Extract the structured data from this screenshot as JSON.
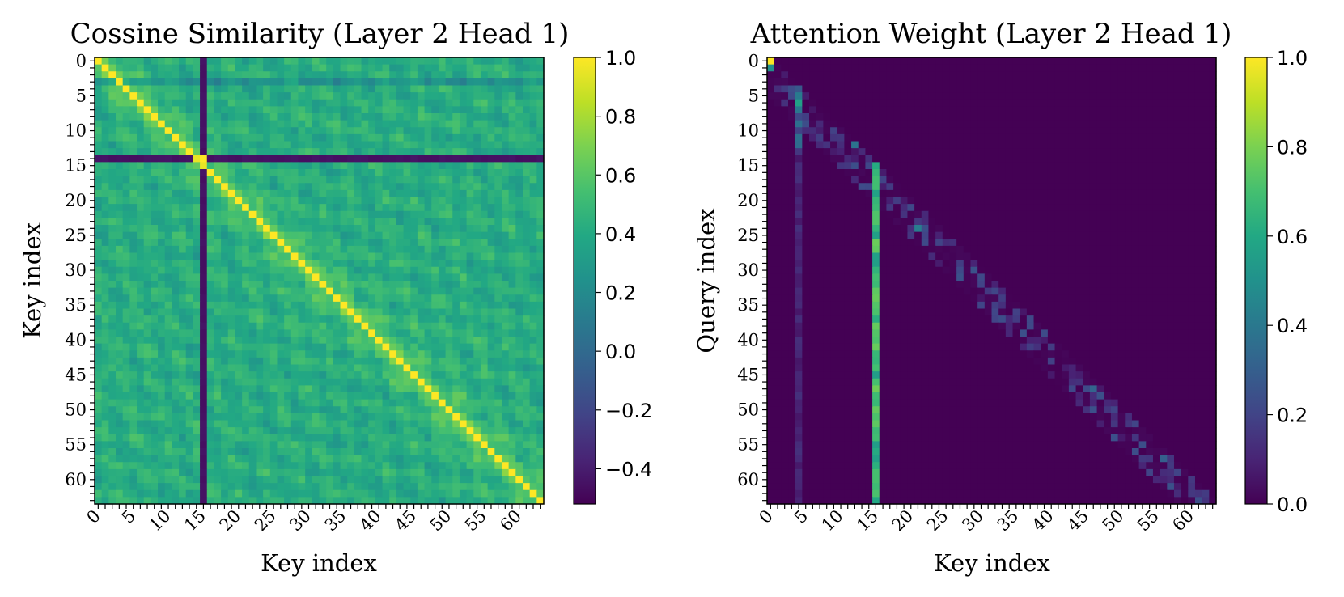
{
  "chart_data": [
    {
      "type": "heatmap",
      "title": "Cossine Similarity (Layer 2 Head 1)",
      "xlabel": "Key index",
      "ylabel": "Key index",
      "grid": false,
      "n": 64,
      "x_tick_labels": [
        "0",
        "5",
        "10",
        "15",
        "20",
        "25",
        "30",
        "35",
        "40",
        "45",
        "50",
        "55",
        "60"
      ],
      "y_tick_labels": [
        "0",
        "5",
        "10",
        "15",
        "20",
        "25",
        "30",
        "35",
        "40",
        "45",
        "50",
        "55",
        "60"
      ],
      "colormap": "viridis",
      "colorbar": {
        "range": [
          -0.52,
          1.0
        ],
        "tick_labels": [
          "1.0",
          "0.8",
          "0.6",
          "0.4",
          "0.2",
          "0.0",
          "−0.2",
          "−0.4"
        ]
      },
      "features": {
        "diagonal": 1.0,
        "off_diagonal_typical": [
          0.2,
          0.65
        ],
        "dark_column_index": 15,
        "dark_row_index": 14,
        "dark_value": -0.45,
        "faint_row_index": 3
      }
    },
    {
      "type": "heatmap",
      "title": "Attention Weight (Layer 2 Head 1)",
      "xlabel": "Key index",
      "ylabel": "Query index",
      "grid": false,
      "n": 64,
      "x_tick_labels": [
        "0",
        "5",
        "10",
        "15",
        "20",
        "25",
        "30",
        "35",
        "40",
        "45",
        "50",
        "55",
        "60"
      ],
      "y_tick_labels": [
        "0",
        "5",
        "10",
        "15",
        "20",
        "25",
        "30",
        "35",
        "40",
        "45",
        "50",
        "55",
        "60"
      ],
      "colormap": "viridis",
      "colorbar": {
        "range": [
          0.0,
          1.0
        ],
        "tick_labels": [
          "1.0",
          "0.8",
          "0.6",
          "0.4",
          "0.2",
          "0.0"
        ]
      },
      "features": {
        "causal_mask": true,
        "top_left_value": 1.0,
        "sink_columns": [
          {
            "index": 15,
            "from_row": 15,
            "value_range": [
              0.55,
              0.78
            ]
          },
          {
            "index": 4,
            "from_row": 2,
            "value_range": [
              0.1,
              0.6
            ]
          }
        ],
        "near_diagonal_weight": [
          0.05,
          0.25
        ]
      }
    }
  ]
}
